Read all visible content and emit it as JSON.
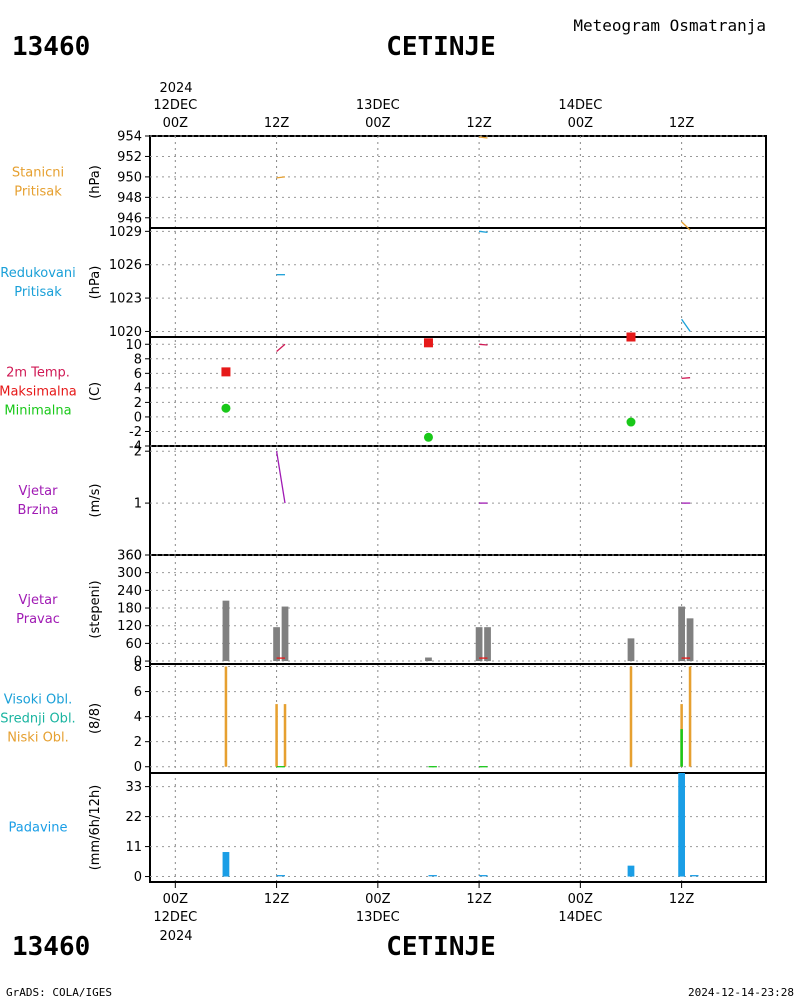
{
  "header": {
    "station_id": "13460",
    "station_name": "CETINJE",
    "title": "Meteogram Osmatranja"
  },
  "time_axis": {
    "top_year": "2024",
    "ticks": [
      {
        "t": 0,
        "top": "12DEC",
        "bottom": "00Z",
        "bottom_date": "12DEC"
      },
      {
        "t": 12,
        "top": "",
        "bottom": "12Z",
        "bottom_date": ""
      },
      {
        "t": 24,
        "top": "13DEC",
        "bottom": "00Z",
        "bottom_date": "13DEC"
      },
      {
        "t": 36,
        "top": "",
        "bottom": "12Z",
        "bottom_date": ""
      },
      {
        "t": 48,
        "top": "14DEC",
        "bottom": "00Z",
        "bottom_date": "14DEC"
      },
      {
        "t": 60,
        "top": "",
        "bottom": "12Z",
        "bottom_date": ""
      }
    ],
    "range_hours": [
      -3,
      70
    ],
    "bottom_year": "2024"
  },
  "footer": {
    "left": "GrADS: COLA/IGES",
    "right": "2024-12-14-23:28"
  },
  "colors": {
    "orange": "#e6a030",
    "cyan": "#1aa0d8",
    "crimson": "#d01a55",
    "red": "#e61919",
    "green": "#19c819",
    "purple": "#a01ab4",
    "gray": "#808080",
    "teal": "#19b4a0",
    "blue": "#1a9ee6"
  },
  "chart_data": [
    {
      "type": "line",
      "label_lines": [
        "Stanicni",
        "Pritisak"
      ],
      "label_colors": [
        "orange",
        "orange"
      ],
      "ylabel": "(hPa)",
      "ylim": [
        945,
        954
      ],
      "yticks": [
        946,
        948,
        950,
        952,
        954
      ],
      "series": [
        {
          "color": "orange",
          "segments": [
            [
              [
                12,
                949.9
              ],
              [
                13,
                950.0
              ]
            ],
            [
              [
                36,
                953.9
              ],
              [
                37,
                953.8
              ]
            ],
            [
              [
                60,
                945.6
              ],
              [
                61,
                944.8
              ]
            ]
          ]
        }
      ]
    },
    {
      "type": "line",
      "label_lines": [
        "Redukovani",
        "Pritisak"
      ],
      "label_colors": [
        "cyan",
        "cyan"
      ],
      "ylabel": "(hPa)",
      "ylim": [
        1019.5,
        1029.3
      ],
      "yticks": [
        1020,
        1023,
        1026,
        1029
      ],
      "series": [
        {
          "color": "cyan",
          "segments": [
            [
              [
                12,
                1025.1
              ],
              [
                13,
                1025.1
              ]
            ],
            [
              [
                36,
                1029.0
              ],
              [
                37,
                1028.9
              ]
            ],
            [
              [
                60,
                1021.1
              ],
              [
                61,
                1020.0
              ]
            ]
          ]
        }
      ]
    },
    {
      "type": "line",
      "label_lines": [
        "2m Temp.",
        "Maksimalna",
        "Minimalna"
      ],
      "label_colors": [
        "crimson",
        "red",
        "green"
      ],
      "ylabel": "(C)",
      "ylim": [
        -4,
        11
      ],
      "yticks": [
        -4,
        -2,
        0,
        2,
        4,
        6,
        8,
        10
      ],
      "series": [
        {
          "color": "crimson",
          "segments": [
            [
              [
                12,
                9.0
              ],
              [
                13,
                10.0
              ]
            ],
            [
              [
                36,
                10.0
              ],
              [
                37,
                9.9
              ]
            ],
            [
              [
                60,
                5.3
              ],
              [
                61,
                5.4
              ]
            ]
          ]
        }
      ],
      "markers": [
        {
          "color": "red",
          "shape": "square",
          "points": [
            [
              6,
              6.2
            ],
            [
              30,
              10.2
            ],
            [
              54,
              11.0
            ]
          ]
        },
        {
          "color": "green",
          "shape": "circle",
          "points": [
            [
              6,
              1.2
            ],
            [
              30,
              -2.8
            ],
            [
              54,
              -0.7
            ]
          ]
        }
      ]
    },
    {
      "type": "line",
      "label_lines": [
        "Vjetar",
        "Brzina"
      ],
      "label_colors": [
        "purple",
        "purple"
      ],
      "ylabel": "(m/s)",
      "ylim": [
        0,
        2.1
      ],
      "yticks": [
        0,
        1,
        2
      ],
      "series": [
        {
          "color": "purple",
          "segments": [
            [
              [
                12,
                2.0
              ],
              [
                13,
                1.0
              ]
            ],
            [
              [
                36,
                1.0
              ],
              [
                37,
                1.0
              ]
            ],
            [
              [
                60,
                1.0
              ],
              [
                61,
                1.0
              ]
            ]
          ]
        }
      ]
    },
    {
      "type": "bar",
      "label_lines": [
        "Vjetar",
        "Pravac"
      ],
      "label_colors": [
        "purple",
        "purple"
      ],
      "ylabel": "(stepeni)",
      "ylim": [
        -10,
        360
      ],
      "yticks": [
        0,
        60,
        120,
        180,
        240,
        300,
        360
      ],
      "bar_width_hours": 0.8,
      "bars": [
        {
          "color": "gray",
          "points": [
            [
              6,
              205
            ],
            [
              12,
              115
            ],
            [
              13,
              185
            ],
            [
              30,
              12
            ],
            [
              36,
              115
            ],
            [
              37,
              115
            ],
            [
              54,
              77
            ],
            [
              60,
              185
            ],
            [
              61,
              145
            ]
          ]
        }
      ],
      "series": [
        {
          "color": "red",
          "segments": [
            [
              [
                12,
                10
              ],
              [
                13,
                10
              ]
            ],
            [
              [
                36,
                10
              ],
              [
                37,
                10
              ]
            ],
            [
              [
                60,
                10
              ],
              [
                61,
                10
              ]
            ]
          ]
        }
      ]
    },
    {
      "type": "bar",
      "label_lines": [
        "Visoki Obl.",
        "Srednji Obl.",
        "Niski Obl."
      ],
      "label_colors": [
        "cyan",
        "teal",
        "orange"
      ],
      "ylabel": "(8/8)",
      "ylim": [
        -0.5,
        8.2
      ],
      "yticks": [
        0,
        2,
        4,
        6,
        8
      ],
      "bar_width_hours": 0.3,
      "bars": [
        {
          "color": "orange",
          "points": [
            [
              6,
              8
            ],
            [
              12,
              5
            ],
            [
              13,
              5
            ],
            [
              54,
              8
            ],
            [
              60,
              5
            ],
            [
              61,
              8
            ]
          ]
        },
        {
          "color": "green",
          "points": [
            [
              60,
              3
            ]
          ]
        }
      ],
      "series": [
        {
          "color": "green",
          "segments": [
            [
              [
                12,
                0
              ],
              [
                13,
                0
              ]
            ],
            [
              [
                30,
                0
              ],
              [
                31,
                0
              ]
            ],
            [
              [
                36,
                0
              ],
              [
                37,
                0
              ]
            ]
          ]
        }
      ]
    },
    {
      "type": "bar",
      "label_lines": [
        "Padavine"
      ],
      "label_colors": [
        "blue"
      ],
      "ylabel": "(mm/6h/12h)",
      "ylim": [
        -2,
        38
      ],
      "yticks": [
        0,
        11,
        22,
        33
      ],
      "bar_width_hours": 0.8,
      "bars": [
        {
          "color": "blue",
          "points": [
            [
              6,
              9
            ],
            [
              54,
              4
            ],
            [
              60,
              38
            ]
          ]
        }
      ],
      "series": [
        {
          "color": "blue",
          "segments": [
            [
              [
                12,
                0.3
              ],
              [
                13,
                0.3
              ]
            ],
            [
              [
                30,
                0.3
              ],
              [
                31,
                0.3
              ]
            ],
            [
              [
                36,
                0.3
              ],
              [
                37,
                0.3
              ]
            ],
            [
              [
                61,
                0.3
              ],
              [
                62,
                0.3
              ]
            ]
          ]
        }
      ]
    }
  ]
}
